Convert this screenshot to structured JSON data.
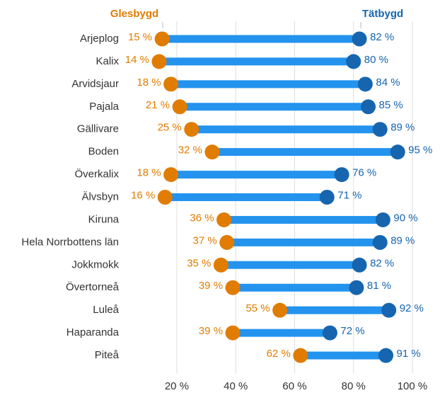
{
  "chart_data": {
    "type": "dumbbell",
    "categories": [
      "Arjeplog",
      "Kalix",
      "Arvidsjaur",
      "Pajala",
      "Gällivare",
      "Boden",
      "Överkalix",
      "Älvsbyn",
      "Kiruna",
      "Hela Norrbottens län",
      "Jokkmokk",
      "Övertorneå",
      "Luleå",
      "Haparanda",
      "Piteå"
    ],
    "series": [
      {
        "name": "Glesbygd",
        "color": "#e07c00",
        "values": [
          15,
          14,
          18,
          21,
          25,
          32,
          18,
          16,
          36,
          37,
          35,
          39,
          55,
          39,
          62
        ],
        "value_labels": [
          "15 %",
          "14 %",
          "18 %",
          "21 %",
          "25 %",
          "32 %",
          "18 %",
          "16 %",
          "36 %",
          "37 %",
          "35 %",
          "39 %",
          "55 %",
          "39 %",
          "62 %"
        ]
      },
      {
        "name": "Tätbygd",
        "color": "#1765ae",
        "values": [
          82,
          80,
          84,
          85,
          89,
          95,
          76,
          71,
          90,
          89,
          82,
          81,
          92,
          72,
          91
        ],
        "value_labels": [
          "82 %",
          "80 %",
          "84 %",
          "85 %",
          "89 %",
          "95 %",
          "76 %",
          "71 %",
          "90 %",
          "89 %",
          "82 %",
          "81 %",
          "92 %",
          "72 %",
          "91 %"
        ]
      }
    ],
    "connector_color": "#2393ee",
    "xlim": [
      0,
      100
    ],
    "xticks": [
      {
        "value": 20,
        "label": "20 %"
      },
      {
        "value": 40,
        "label": "40 %"
      },
      {
        "value": 60,
        "label": "60 %"
      },
      {
        "value": 80,
        "label": "80 %"
      },
      {
        "value": 100,
        "label": "100 %"
      }
    ],
    "grid": true
  }
}
